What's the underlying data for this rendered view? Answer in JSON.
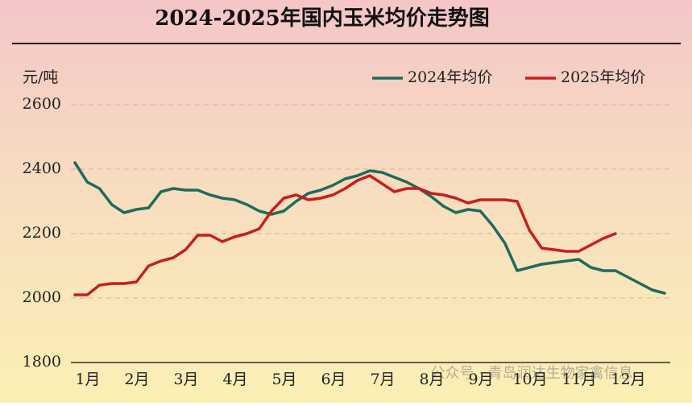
{
  "chart_data": {
    "type": "line",
    "title": "2024-2025年国内玉米均价走势图",
    "y_label": "元/吨",
    "watermark": "公众号 · 青岛润达生物家禽信息",
    "categories": [
      "1月",
      null,
      null,
      null,
      "2月",
      null,
      null,
      null,
      "3月",
      null,
      null,
      null,
      "4月",
      null,
      null,
      null,
      "5月",
      null,
      null,
      null,
      "6月",
      null,
      null,
      null,
      "7月",
      null,
      null,
      null,
      "8月",
      null,
      null,
      null,
      "9月",
      null,
      null,
      null,
      "10月",
      null,
      null,
      null,
      "11月",
      null,
      null,
      null,
      "12月",
      null,
      null,
      null,
      null
    ],
    "series": [
      {
        "name": "2024年均价",
        "color": "#1f6b5c",
        "values": [
          2420,
          2360,
          2340,
          2290,
          2265,
          2275,
          2280,
          2330,
          2340,
          2335,
          2335,
          2320,
          2310,
          2305,
          2290,
          2270,
          2260,
          2270,
          2300,
          2325,
          2335,
          2350,
          2370,
          2380,
          2395,
          2390,
          2375,
          2360,
          2340,
          2315,
          2285,
          2265,
          2275,
          2270,
          2225,
          2170,
          2085,
          2095,
          2105,
          2110,
          2115,
          2120,
          2095,
          2085,
          2085,
          2065,
          2045,
          2025,
          2015
        ]
      },
      {
        "name": "2025年均价",
        "color": "#c81e1e",
        "values": [
          2010,
          2010,
          2040,
          2045,
          2045,
          2050,
          2100,
          2115,
          2125,
          2150,
          2195,
          2195,
          2175,
          2190,
          2200,
          2215,
          2270,
          2310,
          2320,
          2305,
          2310,
          2320,
          2340,
          2365,
          2380,
          2355,
          2330,
          2340,
          2340,
          2325,
          2320,
          2310,
          2295,
          2305,
          2305,
          2305,
          2300,
          2210,
          2155,
          2150,
          2145,
          2145,
          2165,
          2185,
          2200,
          null,
          null,
          null,
          null
        ]
      }
    ],
    "ylim": [
      1800,
      2600
    ],
    "yticks": [
      1800,
      2000,
      2200,
      2400,
      2600
    ],
    "grid": true,
    "legend": "top-right"
  }
}
